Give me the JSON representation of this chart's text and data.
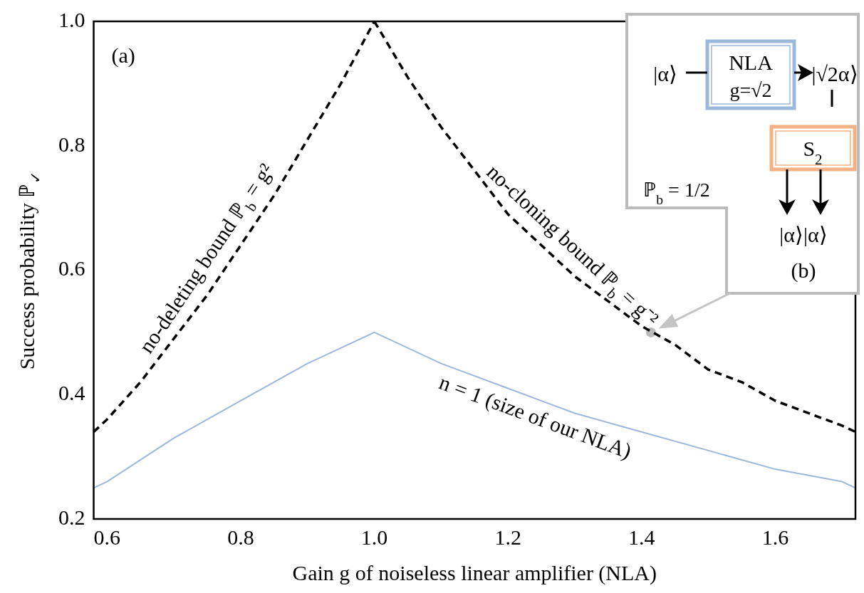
{
  "chart_data": {
    "type": "line",
    "xlabel": "Gain g of noiseless linear amplifier (NLA)",
    "ylabel": "Success probability ℙ$_{✓}$",
    "xlim": [
      0.58,
      1.72
    ],
    "xticks": [
      0.6,
      0.8,
      {
        "value": 1,
        "label": "1.0"
      },
      1.2,
      1.4,
      1.6
    ],
    "ylim": [
      0.2,
      1.0
    ],
    "yticks": [
      0.2,
      0.4,
      0.6,
      0.8,
      {
        "value": 1,
        "label": "1.0"
      }
    ],
    "grid": false,
    "legend": false,
    "marker": "none",
    "series": [
      {
        "name": "no-deleting bound ℙ$_{b}$ = g²",
        "color": "#000000",
        "line_style": "dashed",
        "x": [
          0.58,
          0.6,
          0.65,
          0.7,
          0.75,
          0.8,
          0.85,
          0.9,
          0.95,
          1.0
        ],
        "values": [
          0.34,
          0.36,
          0.42,
          0.49,
          0.56,
          0.64,
          0.72,
          0.81,
          0.9,
          1.0
        ]
      },
      {
        "name": "no-cloning bound ℙ$_{b}$ = g⁻²",
        "color": "#000000",
        "line_style": "dashed",
        "x": [
          1.0,
          1.05,
          1.1,
          1.15,
          1.2,
          1.25,
          1.3,
          1.35,
          1.4,
          1.45,
          1.5,
          1.55,
          1.6,
          1.65,
          1.7,
          1.72
        ],
        "values": [
          1.0,
          0.91,
          0.83,
          0.76,
          0.69,
          0.64,
          0.59,
          0.55,
          0.51,
          0.48,
          0.44,
          0.42,
          0.39,
          0.37,
          0.35,
          0.34
        ]
      },
      {
        "name": "n = 1 (size of our NLA)",
        "color": "#9bb8dc",
        "line_style": "solid",
        "x": [
          0.58,
          0.6,
          0.7,
          0.8,
          0.9,
          1.0,
          1.1,
          1.2,
          1.3,
          1.4,
          1.5,
          1.6,
          1.7,
          1.72
        ],
        "values": [
          0.25,
          0.26,
          0.33,
          0.39,
          0.45,
          0.5,
          0.45,
          0.41,
          0.37,
          0.34,
          0.31,
          0.28,
          0.26,
          0.25
        ]
      },
      {
        "type": "scatter",
        "marker": "circle",
        "color": "#bbbbbb",
        "x": [
          1.414
        ],
        "values": [
          0.5
        ]
      }
    ],
    "annotations": [
      "(a)",
      "|α⟩",
      "NLA",
      "g=√2",
      "|√2α⟩",
      "S$_{2}$",
      "ℙ$_{b}$ = 1/2",
      "|α⟩|α⟩",
      "(b)"
    ]
  }
}
